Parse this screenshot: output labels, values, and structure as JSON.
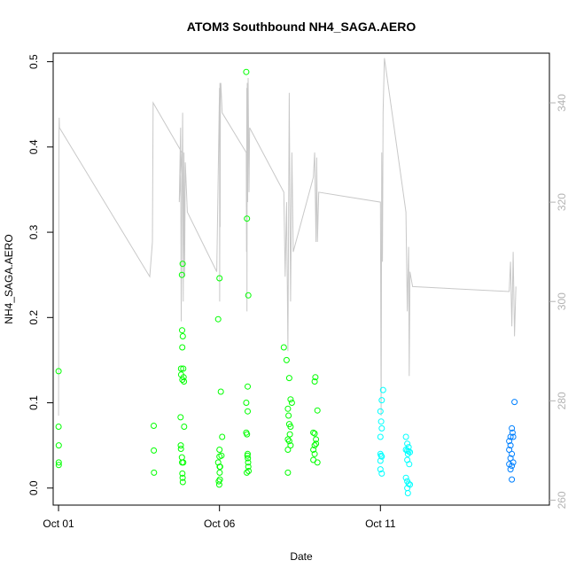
{
  "chart_data": {
    "type": "scatter",
    "title": "ATOM3 Southbound NH4_SAGA.AERO",
    "xlabel": "Date",
    "ylabel": "NH4_SAGA.AERO",
    "xlim": [
      "2016-09-30T20:00",
      "2016-10-16T06:00"
    ],
    "ylim": [
      -0.02,
      0.51
    ],
    "y2lim": [
      259,
      350
    ],
    "x_ticks": [
      {
        "date": "2016-10-01",
        "label": "Oct 01"
      },
      {
        "date": "2016-10-06",
        "label": "Oct 06"
      },
      {
        "date": "2016-10-11",
        "label": "Oct 11"
      }
    ],
    "y_ticks": [
      0.0,
      0.1,
      0.2,
      0.3,
      0.4,
      0.5
    ],
    "y2_ticks": [
      260,
      280,
      300,
      320,
      340
    ],
    "grid": false,
    "colors": {
      "axes": "#000000",
      "secondary_axis": "#b3b3b3",
      "secondary_line": "#c8c8c8",
      "point_green": "#00ff00",
      "point_cyan": "#00ffff",
      "point_blue": "#0080ff"
    },
    "series": [
      {
        "axis": "left",
        "style": "points",
        "points": [
          [
            "2016-10-01T00:00",
            0.137
          ],
          [
            "2016-10-01T00:00",
            0.072
          ],
          [
            "2016-10-01T00:10",
            0.05
          ],
          [
            "2016-10-01T00:10",
            0.03
          ],
          [
            "2016-10-01T00:10",
            0.027
          ],
          [
            "2016-10-03T23:00",
            0.073
          ],
          [
            "2016-10-03T23:05",
            0.044
          ],
          [
            "2016-10-03T23:10",
            0.018
          ],
          [
            "2016-10-04T19:00",
            0.083
          ],
          [
            "2016-10-04T19:10",
            0.05
          ],
          [
            "2016-10-04T19:15",
            0.046
          ],
          [
            "2016-10-04T19:20",
            0.14
          ],
          [
            "2016-10-04T19:25",
            0.133
          ],
          [
            "2016-10-04T20:00",
            0.25
          ],
          [
            "2016-10-04T20:10",
            0.185
          ],
          [
            "2016-10-04T20:15",
            0.165
          ],
          [
            "2016-10-04T20:20",
            0.127
          ],
          [
            "2016-10-04T20:30",
            0.263
          ],
          [
            "2016-10-04T20:40",
            0.178
          ],
          [
            "2016-10-04T21:00",
            0.14
          ],
          [
            "2016-10-04T21:15",
            0.13
          ],
          [
            "2016-10-04T21:30",
            0.125
          ],
          [
            "2016-10-04T21:40",
            0.072
          ],
          [
            "2016-10-04T20:00",
            0.036
          ],
          [
            "2016-10-04T20:10",
            0.03
          ],
          [
            "2016-10-04T20:20",
            0.017
          ],
          [
            "2016-10-04T20:30",
            0.012
          ],
          [
            "2016-10-04T20:40",
            0.007
          ],
          [
            "2016-10-04T21:00",
            0.03
          ],
          [
            "2016-10-05T23:00",
            0.198
          ],
          [
            "2016-10-06T00:00",
            0.246
          ],
          [
            "2016-10-06T01:00",
            0.113
          ],
          [
            "2016-10-06T02:00",
            0.06
          ],
          [
            "2016-10-06T00:00",
            0.045
          ],
          [
            "2016-10-06T00:00",
            0.037
          ],
          [
            "2016-10-06T00:10",
            0.025
          ],
          [
            "2016-10-06T00:10",
            0.018
          ],
          [
            "2016-10-06T00:15",
            0.01
          ],
          [
            "2016-10-05T23:30",
            0.008
          ],
          [
            "2016-10-05T23:50",
            0.004
          ],
          [
            "2016-10-06T00:30",
            0.025
          ],
          [
            "2016-10-06T01:30",
            0.038
          ],
          [
            "2016-10-05T23:00",
            0.03
          ],
          [
            "2016-10-06T20:00",
            0.488
          ],
          [
            "2016-10-06T20:30",
            0.316
          ],
          [
            "2016-10-06T21:30",
            0.226
          ],
          [
            "2016-10-06T21:00",
            0.119
          ],
          [
            "2016-10-06T20:00",
            0.1
          ],
          [
            "2016-10-06T21:00",
            0.09
          ],
          [
            "2016-10-06T20:00",
            0.065
          ],
          [
            "2016-10-06T20:30",
            0.063
          ],
          [
            "2016-10-06T21:00",
            0.04
          ],
          [
            "2016-10-06T21:10",
            0.035
          ],
          [
            "2016-10-06T21:20",
            0.03
          ],
          [
            "2016-10-06T21:30",
            0.025
          ],
          [
            "2016-10-06T21:40",
            0.02
          ],
          [
            "2016-10-06T20:20",
            0.018
          ],
          [
            "2016-10-06T20:50",
            0.038
          ],
          [
            "2016-10-08T00:00",
            0.165
          ],
          [
            "2016-10-08T02:00",
            0.15
          ],
          [
            "2016-10-08T04:00",
            0.129
          ],
          [
            "2016-10-08T05:00",
            0.104
          ],
          [
            "2016-10-08T06:00",
            0.1
          ],
          [
            "2016-10-08T03:00",
            0.093
          ],
          [
            "2016-10-08T03:30",
            0.085
          ],
          [
            "2016-10-08T04:00",
            0.075
          ],
          [
            "2016-10-08T05:00",
            0.072
          ],
          [
            "2016-10-08T04:30",
            0.063
          ],
          [
            "2016-10-08T03:00",
            0.057
          ],
          [
            "2016-10-08T04:00",
            0.055
          ],
          [
            "2016-10-08T05:00",
            0.05
          ],
          [
            "2016-10-08T03:00",
            0.045
          ],
          [
            "2016-10-08T03:00",
            0.018
          ],
          [
            "2016-10-08T23:00",
            0.125
          ],
          [
            "2016-10-08T23:30",
            0.13
          ],
          [
            "2016-10-09T01:00",
            0.091
          ],
          [
            "2016-10-08T22:00",
            0.065
          ],
          [
            "2016-10-08T23:00",
            0.064
          ],
          [
            "2016-10-09T00:00",
            0.057
          ],
          [
            "2016-10-09T00:00",
            0.052
          ],
          [
            "2016-10-08T23:00",
            0.05
          ],
          [
            "2016-10-08T22:00",
            0.045
          ],
          [
            "2016-10-08T23:00",
            0.04
          ],
          [
            "2016-10-08T22:00",
            0.033
          ],
          [
            "2016-10-09T01:00",
            0.03
          ]
        ]
      },
      {
        "axis": "left",
        "style": "points",
        "points": [
          [
            "2016-10-11T02:00",
            0.115
          ],
          [
            "2016-10-11T01:00",
            0.103
          ],
          [
            "2016-10-11T00:00",
            0.09
          ],
          [
            "2016-10-11T00:30",
            0.078
          ],
          [
            "2016-10-11T01:00",
            0.07
          ],
          [
            "2016-10-11T00:00",
            0.06
          ],
          [
            "2016-10-11T00:00",
            0.04
          ],
          [
            "2016-10-11T00:30",
            0.038
          ],
          [
            "2016-10-11T01:00",
            0.037
          ],
          [
            "2016-10-11T00:00",
            0.032
          ],
          [
            "2016-10-11T00:00",
            0.022
          ],
          [
            "2016-10-11T01:00",
            0.017
          ],
          [
            "2016-10-11T19:00",
            0.06
          ],
          [
            "2016-10-11T20:00",
            0.052
          ],
          [
            "2016-10-11T21:00",
            0.048
          ],
          [
            "2016-10-11T19:00",
            0.045
          ],
          [
            "2016-10-11T20:00",
            0.044
          ],
          [
            "2016-10-11T21:00",
            0.043
          ],
          [
            "2016-10-11T22:00",
            0.042
          ],
          [
            "2016-10-11T20:30",
            0.04
          ],
          [
            "2016-10-11T20:00",
            0.033
          ],
          [
            "2016-10-11T21:30",
            0.028
          ],
          [
            "2016-10-11T19:00",
            0.012
          ],
          [
            "2016-10-11T20:00",
            0.008
          ],
          [
            "2016-10-11T21:00",
            0.005
          ],
          [
            "2016-10-11T22:00",
            0.004
          ],
          [
            "2016-10-11T20:00",
            0.0
          ],
          [
            "2016-10-11T20:30",
            -0.006
          ]
        ]
      },
      {
        "axis": "left",
        "style": "points",
        "points": [
          [
            "2016-10-15T04:00",
            0.101
          ],
          [
            "2016-10-15T02:00",
            0.07
          ],
          [
            "2016-10-15T02:30",
            0.065
          ],
          [
            "2016-10-15T01:00",
            0.06
          ],
          [
            "2016-10-15T03:00",
            0.06
          ],
          [
            "2016-10-15T00:00",
            0.055
          ],
          [
            "2016-10-15T01:00",
            0.05
          ],
          [
            "2016-10-15T00:00",
            0.045
          ],
          [
            "2016-10-15T02:00",
            0.04
          ],
          [
            "2016-10-15T01:00",
            0.035
          ],
          [
            "2016-10-15T03:00",
            0.03
          ],
          [
            "2016-10-15T00:00",
            0.028
          ],
          [
            "2016-10-15T02:00",
            0.026
          ],
          [
            "2016-10-15T01:00",
            0.022
          ],
          [
            "2016-10-15T02:00",
            0.01
          ]
        ]
      },
      {
        "axis": "right",
        "style": "line",
        "points": [
          [
            "2016-10-01T00:00",
            277
          ],
          [
            "2016-10-01T00:20",
            333
          ],
          [
            "2016-10-01T00:30",
            337
          ],
          [
            "2016-10-01T00:40",
            335
          ],
          [
            "2016-10-03T20:00",
            305
          ],
          [
            "2016-10-03T22:00",
            312
          ],
          [
            "2016-10-03T22:30",
            340
          ],
          [
            "2016-10-04T20:00",
            330
          ],
          [
            "2016-10-04T18:00",
            320
          ],
          [
            "2016-10-04T19:00",
            335
          ],
          [
            "2016-10-04T19:30",
            296
          ],
          [
            "2016-10-04T20:00",
            322
          ],
          [
            "2016-10-04T20:30",
            338
          ],
          [
            "2016-10-04T21:00",
            300
          ],
          [
            "2016-10-04T21:30",
            330
          ],
          [
            "2016-10-04T22:00",
            305
          ],
          [
            "2016-10-04T22:30",
            328
          ],
          [
            "2016-10-05T00:00",
            318
          ],
          [
            "2016-10-05T22:00",
            306
          ],
          [
            "2016-10-06T00:00",
            343
          ],
          [
            "2016-10-06T00:10",
            300
          ],
          [
            "2016-10-06T00:20",
            344
          ],
          [
            "2016-10-06T00:30",
            315
          ],
          [
            "2016-10-06T00:40",
            340
          ],
          [
            "2016-10-06T01:00",
            344
          ],
          [
            "2016-10-06T02:00",
            338
          ],
          [
            "2016-10-06T20:00",
            330
          ],
          [
            "2016-10-06T20:10",
            310
          ],
          [
            "2016-10-06T20:20",
            343
          ],
          [
            "2016-10-06T20:30",
            298
          ],
          [
            "2016-10-06T20:40",
            344
          ],
          [
            "2016-10-06T21:00",
            320
          ],
          [
            "2016-10-06T21:20",
            345
          ],
          [
            "2016-10-06T22:00",
            322
          ],
          [
            "2016-10-06T22:30",
            335
          ],
          [
            "2016-10-08T00:00",
            322
          ],
          [
            "2016-10-08T01:00",
            305
          ],
          [
            "2016-10-08T02:00",
            320
          ],
          [
            "2016-10-08T03:00",
            290
          ],
          [
            "2016-10-08T04:00",
            342
          ],
          [
            "2016-10-08T05:00",
            300
          ],
          [
            "2016-10-08T06:00",
            330
          ],
          [
            "2016-10-08T07:00",
            310
          ],
          [
            "2016-10-08T22:00",
            325
          ],
          [
            "2016-10-08T23:00",
            330
          ],
          [
            "2016-10-09T00:00",
            312
          ],
          [
            "2016-10-09T00:30",
            329
          ],
          [
            "2016-10-09T01:00",
            312
          ],
          [
            "2016-10-09T02:00",
            322
          ],
          [
            "2016-10-11T00:00",
            320
          ],
          [
            "2016-10-11T00:30",
            277
          ],
          [
            "2016-10-11T01:00",
            330
          ],
          [
            "2016-10-11T01:30",
            308
          ],
          [
            "2016-10-11T02:00",
            338
          ],
          [
            "2016-10-11T03:00",
            349
          ],
          [
            "2016-10-11T19:00",
            318
          ],
          [
            "2016-10-11T20:00",
            298
          ],
          [
            "2016-10-11T21:00",
            311
          ],
          [
            "2016-10-11T21:30",
            285
          ],
          [
            "2016-10-11T22:00",
            306
          ],
          [
            "2016-10-12T00:00",
            303
          ],
          [
            "2016-10-15T00:00",
            302
          ],
          [
            "2016-10-15T01:00",
            308
          ],
          [
            "2016-10-15T02:00",
            295
          ],
          [
            "2016-10-15T03:00",
            310
          ],
          [
            "2016-10-15T04:00",
            293
          ],
          [
            "2016-10-15T05:00",
            303
          ]
        ]
      }
    ]
  }
}
